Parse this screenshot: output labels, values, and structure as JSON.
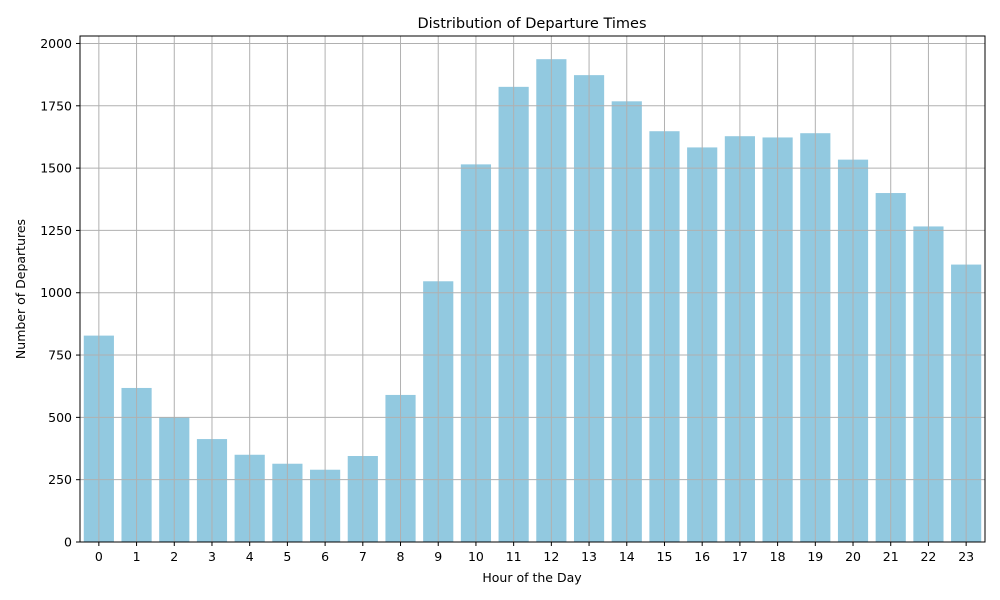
{
  "chart_data": {
    "type": "bar",
    "title": "Distribution of Departure Times",
    "xlabel": "Hour of the Day",
    "ylabel": "Number of Departures",
    "categories": [
      "0",
      "1",
      "2",
      "3",
      "4",
      "5",
      "6",
      "7",
      "8",
      "9",
      "10",
      "11",
      "12",
      "13",
      "14",
      "15",
      "16",
      "17",
      "18",
      "19",
      "20",
      "21",
      "22",
      "23"
    ],
    "values": [
      828,
      618,
      500,
      413,
      350,
      314,
      290,
      345,
      590,
      1046,
      1515,
      1826,
      1937,
      1873,
      1768,
      1648,
      1583,
      1628,
      1623,
      1640,
      1534,
      1400,
      1266,
      1113
    ],
    "ylim": [
      0,
      2030
    ],
    "yticks": [
      0,
      250,
      500,
      750,
      1000,
      1250,
      1500,
      1750,
      2000
    ],
    "grid": true,
    "bar_color": "#92c9e0"
  }
}
